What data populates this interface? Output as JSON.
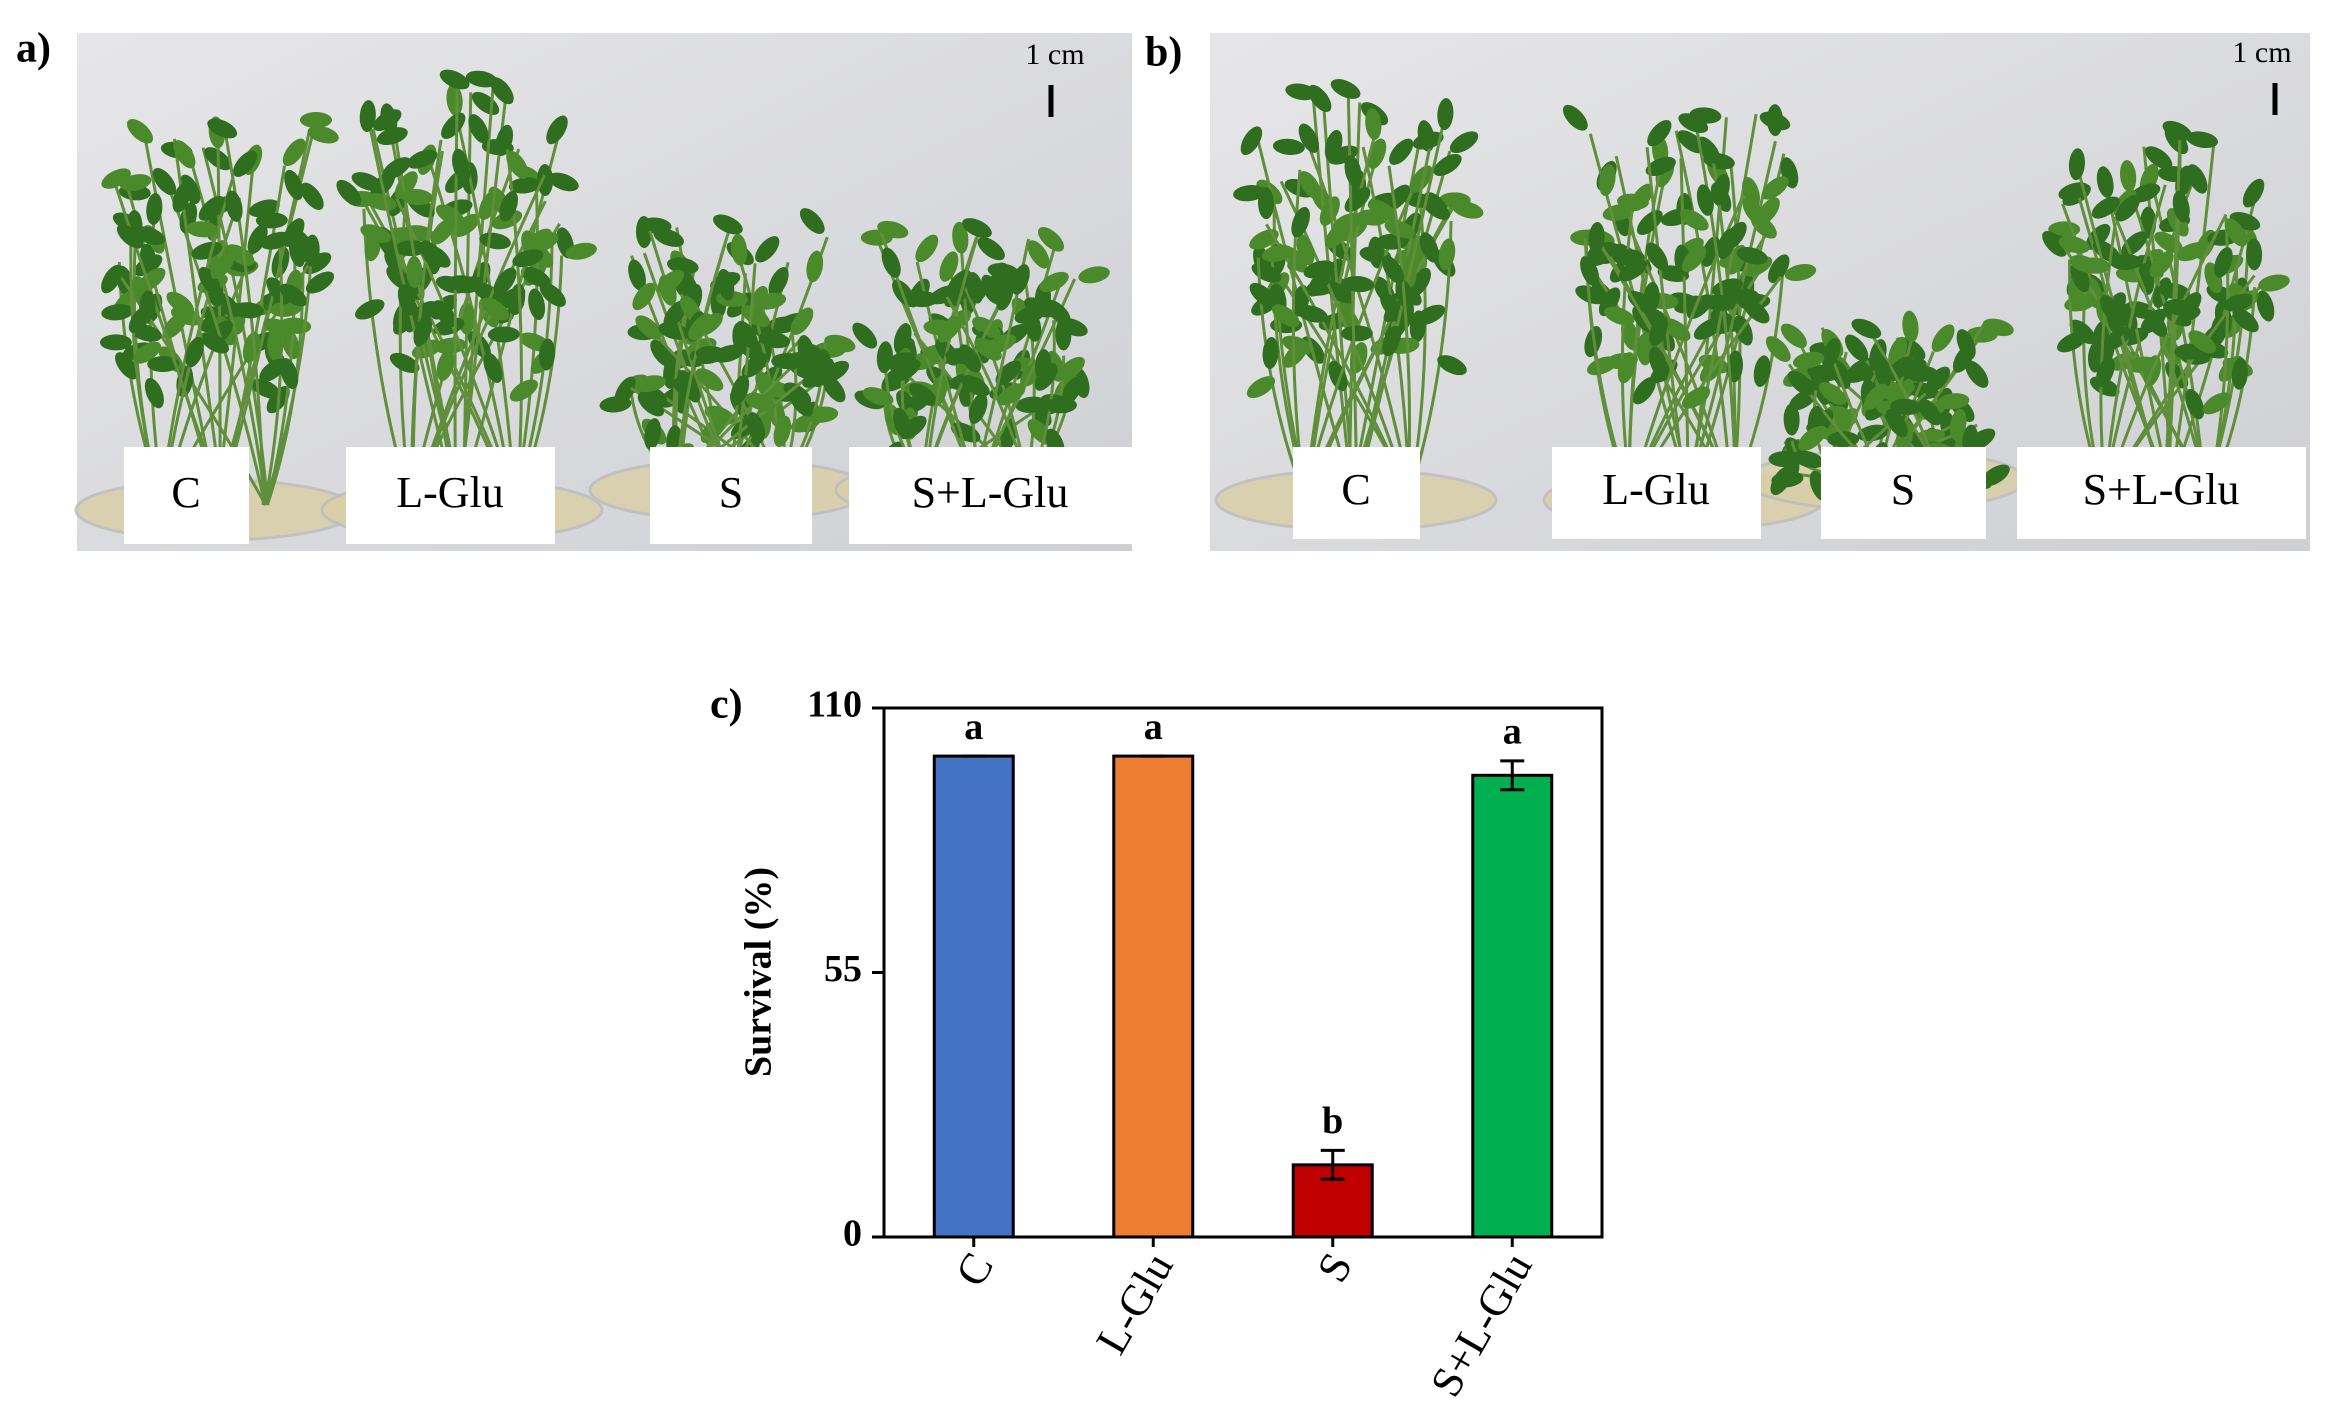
{
  "panels": {
    "a": {
      "label": "a)",
      "scale": "1 cm",
      "groups": [
        "C",
        "L-Glu",
        "S",
        "S+L-Glu"
      ]
    },
    "b": {
      "label": "b)",
      "scale": "1 cm",
      "groups": [
        "C",
        "L-Glu",
        "S",
        "S+L-Glu"
      ]
    },
    "c": {
      "label": "c)"
    }
  },
  "chart_data": {
    "type": "bar",
    "ylabel": "Survival (%)",
    "categories": [
      "C",
      "L-Glu",
      "S",
      "S+L-Glu"
    ],
    "values": [
      100,
      100,
      15,
      96
    ],
    "errors": [
      0,
      0,
      3,
      3
    ],
    "annotations": [
      "a",
      "a",
      "b",
      "a"
    ],
    "colors": [
      "#4472c4",
      "#ed7d31",
      "#c00000",
      "#00b050"
    ],
    "ylim": [
      0,
      110
    ],
    "yticks": [
      0,
      55,
      110
    ],
    "grid": false
  }
}
